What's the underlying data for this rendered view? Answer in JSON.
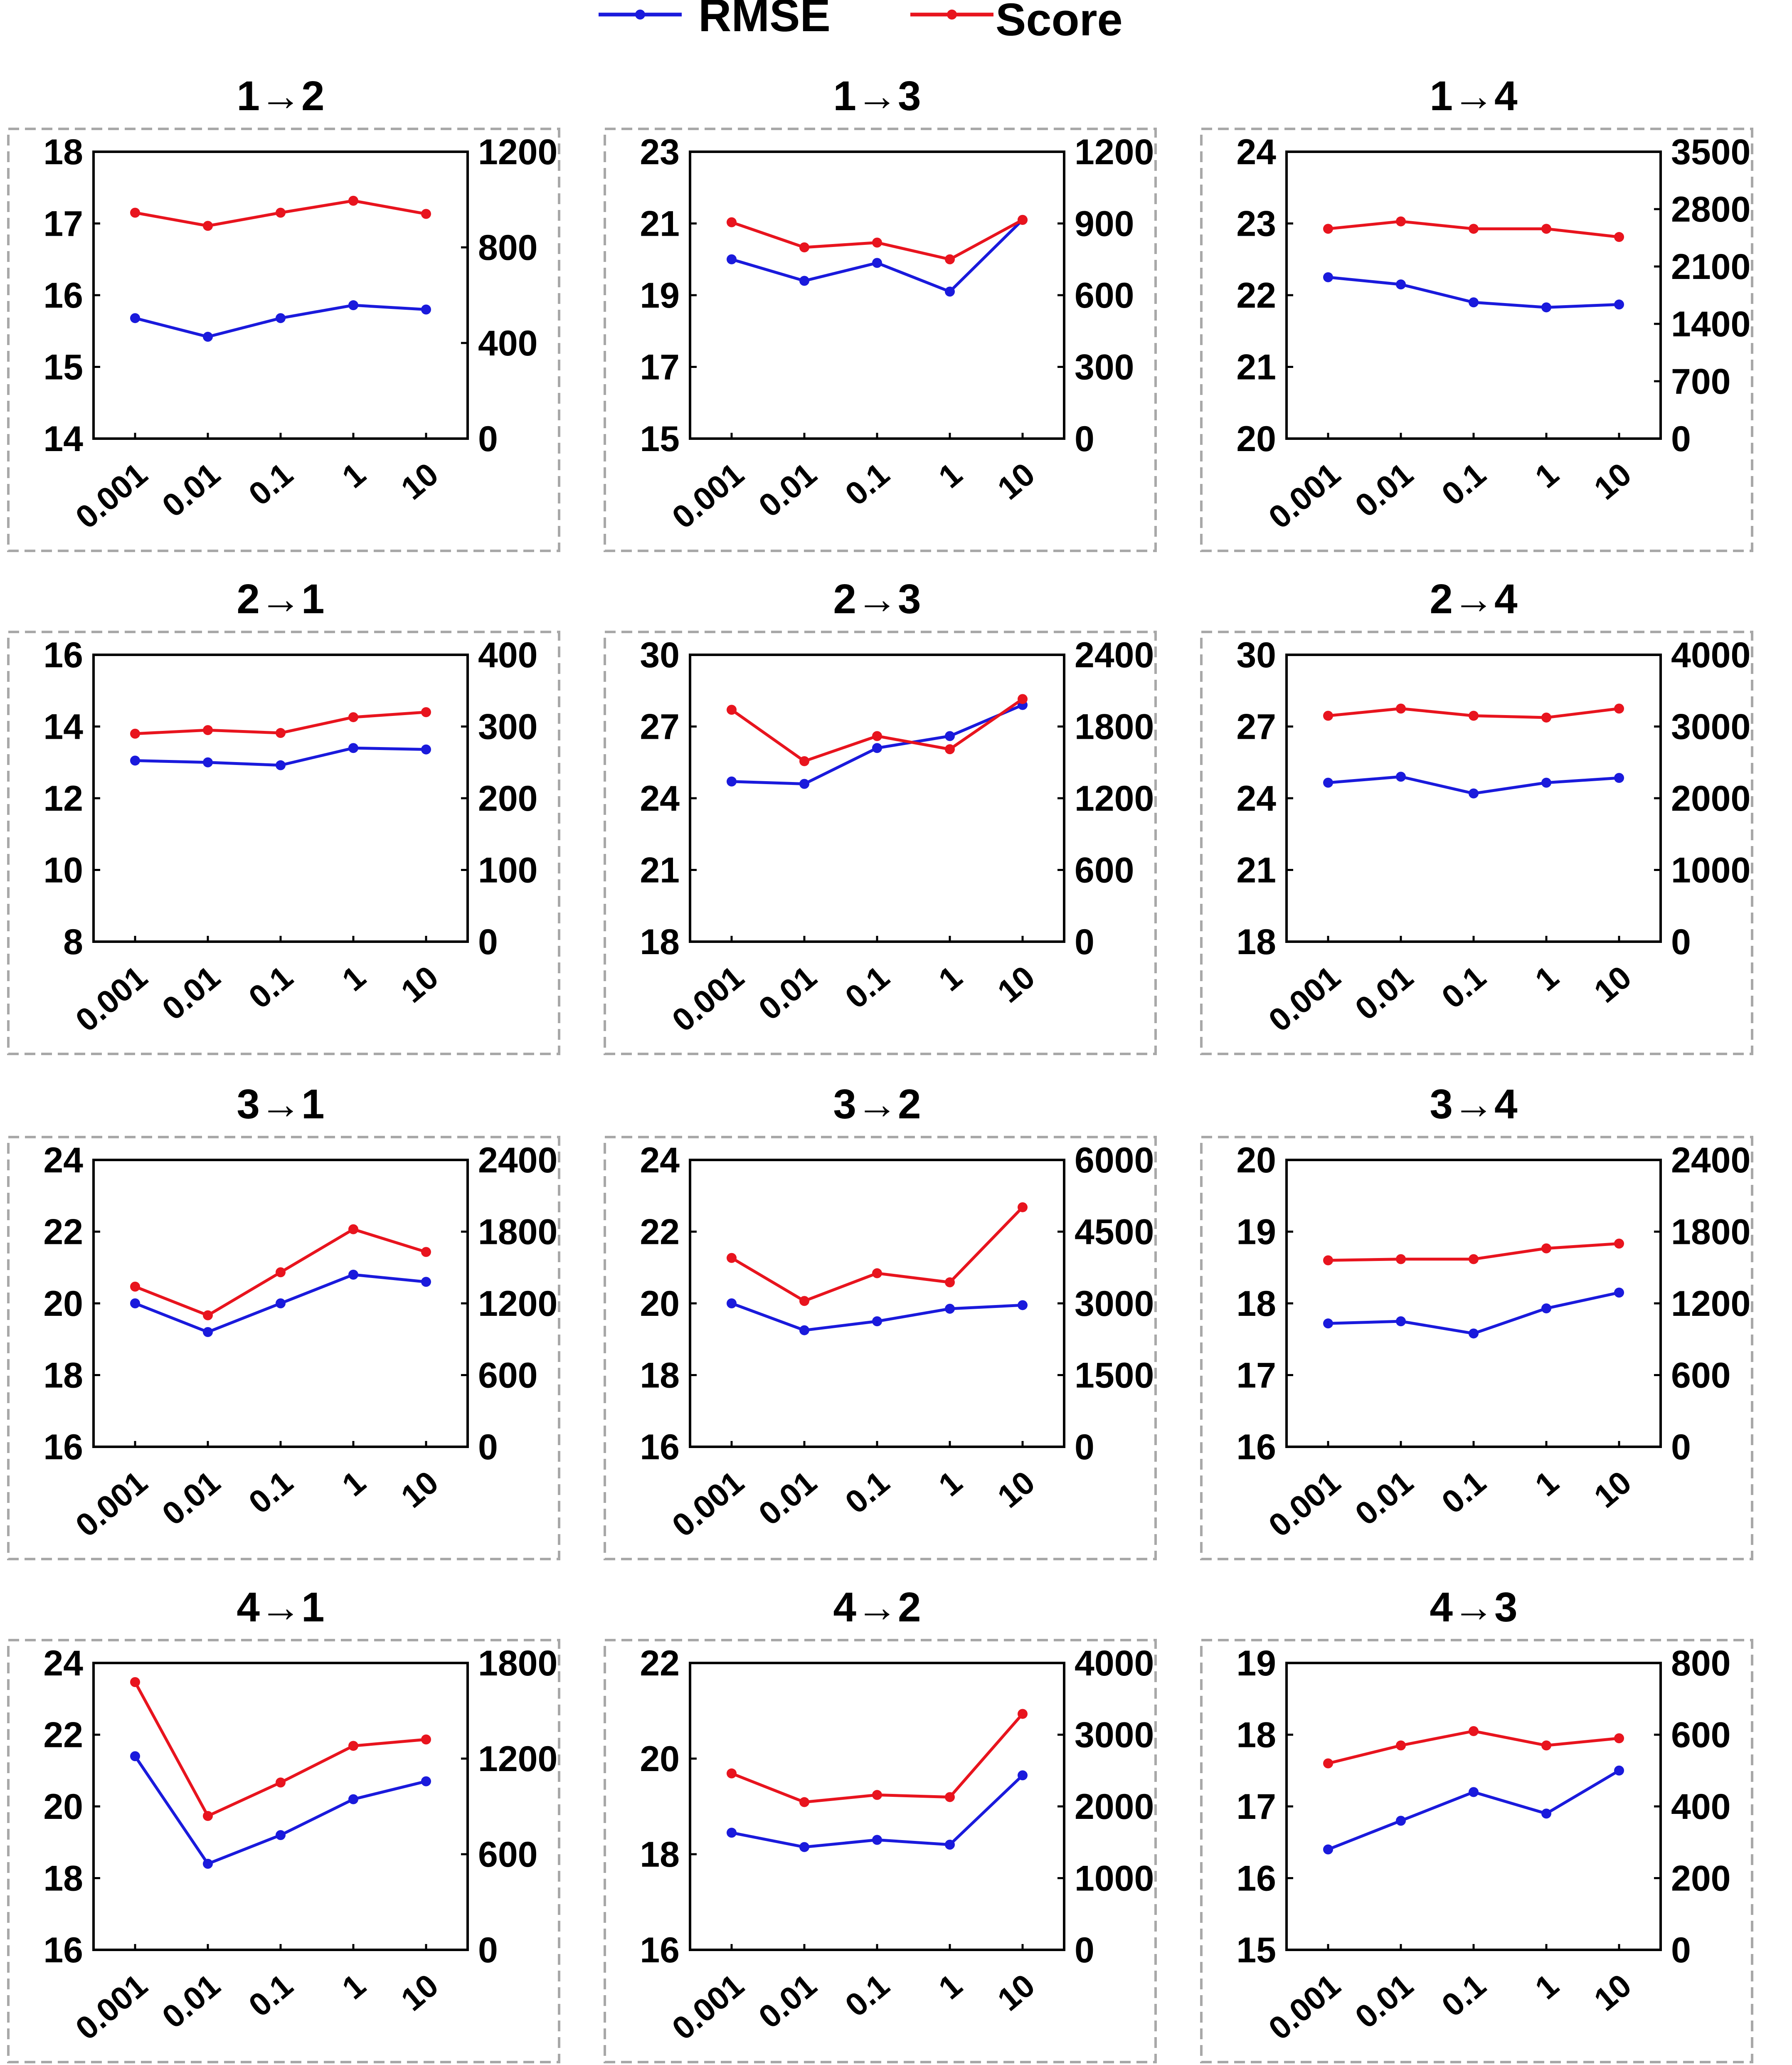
{
  "legend": {
    "placement": "top-center",
    "items": [
      {
        "label": "RMSE",
        "color": "#1a1adc"
      },
      {
        "label": "Score",
        "color": "#e8141e"
      }
    ]
  },
  "colors": {
    "rmse": "#1a1adc",
    "score": "#e8141e",
    "panel_border": "#a8a8a8",
    "axis": "#000000"
  },
  "chart_data": [
    {
      "type": "line",
      "title": "1→2",
      "categories": [
        "0.001",
        "0.01",
        "0.1",
        "1",
        "10"
      ],
      "y_left": {
        "ticks": [
          14,
          15,
          16,
          17,
          18
        ],
        "lim": [
          14,
          18
        ]
      },
      "y_right": {
        "ticks": [
          0,
          400,
          800,
          1200
        ],
        "lim": [
          0,
          1200
        ]
      },
      "series": [
        {
          "name": "RMSE",
          "axis": "left",
          "values": [
            15.68,
            15.42,
            15.68,
            15.86,
            15.8
          ]
        },
        {
          "name": "Score",
          "axis": "right",
          "values": [
            945,
            890,
            945,
            995,
            940
          ]
        }
      ]
    },
    {
      "type": "line",
      "title": "1→3",
      "categories": [
        "0.001",
        "0.01",
        "0.1",
        "1",
        "10"
      ],
      "y_left": {
        "ticks": [
          15,
          17,
          19,
          21,
          23
        ],
        "lim": [
          15,
          23
        ]
      },
      "y_right": {
        "ticks": [
          0,
          300,
          600,
          900,
          1200
        ],
        "lim": [
          0,
          1200
        ]
      },
      "series": [
        {
          "name": "RMSE",
          "axis": "left",
          "values": [
            20.0,
            19.4,
            19.9,
            19.1,
            21.1
          ]
        },
        {
          "name": "Score",
          "axis": "right",
          "values": [
            905,
            800,
            820,
            750,
            915
          ]
        }
      ]
    },
    {
      "type": "line",
      "title": "1→4",
      "categories": [
        "0.001",
        "0.01",
        "0.1",
        "1",
        "10"
      ],
      "y_left": {
        "ticks": [
          20,
          21,
          22,
          23,
          24
        ],
        "lim": [
          20,
          24
        ]
      },
      "y_right": {
        "ticks": [
          0,
          700,
          1400,
          2100,
          2800,
          3500
        ],
        "lim": [
          0,
          3500
        ]
      },
      "series": [
        {
          "name": "RMSE",
          "axis": "left",
          "values": [
            22.25,
            22.15,
            21.9,
            21.83,
            21.87
          ]
        },
        {
          "name": "Score",
          "axis": "right",
          "values": [
            2560,
            2650,
            2560,
            2560,
            2460
          ]
        }
      ]
    },
    {
      "type": "line",
      "title": "2→1",
      "categories": [
        "0.001",
        "0.01",
        "0.1",
        "1",
        "10"
      ],
      "y_left": {
        "ticks": [
          8,
          10,
          12,
          14,
          16
        ],
        "lim": [
          8,
          16
        ]
      },
      "y_right": {
        "ticks": [
          0,
          100,
          200,
          300,
          400
        ],
        "lim": [
          0,
          400
        ]
      },
      "series": [
        {
          "name": "RMSE",
          "axis": "left",
          "values": [
            13.05,
            13.0,
            12.92,
            13.4,
            13.36
          ]
        },
        {
          "name": "Score",
          "axis": "right",
          "values": [
            290,
            295,
            291,
            313,
            320
          ]
        }
      ]
    },
    {
      "type": "line",
      "title": "2→3",
      "categories": [
        "0.001",
        "0.01",
        "0.1",
        "1",
        "10"
      ],
      "y_left": {
        "ticks": [
          18,
          21,
          24,
          27,
          30
        ],
        "lim": [
          18,
          30
        ]
      },
      "y_right": {
        "ticks": [
          0,
          600,
          1200,
          1800,
          2400
        ],
        "lim": [
          0,
          2400
        ]
      },
      "series": [
        {
          "name": "RMSE",
          "axis": "left",
          "values": [
            24.7,
            24.6,
            26.1,
            26.6,
            27.9
          ]
        },
        {
          "name": "Score",
          "axis": "right",
          "values": [
            1940,
            1510,
            1720,
            1610,
            2030
          ]
        }
      ]
    },
    {
      "type": "line",
      "title": "2→4",
      "categories": [
        "0.001",
        "0.01",
        "0.1",
        "1",
        "10"
      ],
      "y_left": {
        "ticks": [
          18,
          21,
          24,
          27,
          30
        ],
        "lim": [
          18,
          30
        ]
      },
      "y_right": {
        "ticks": [
          0,
          1000,
          2000,
          3000,
          4000
        ],
        "lim": [
          0,
          4000
        ]
      },
      "series": [
        {
          "name": "RMSE",
          "axis": "left",
          "values": [
            24.65,
            24.9,
            24.2,
            24.65,
            24.85
          ]
        },
        {
          "name": "Score",
          "axis": "right",
          "values": [
            3150,
            3250,
            3150,
            3125,
            3250
          ]
        }
      ]
    },
    {
      "type": "line",
      "title": "3→1",
      "categories": [
        "0.001",
        "0.01",
        "0.1",
        "1",
        "10"
      ],
      "y_left": {
        "ticks": [
          16,
          18,
          20,
          22,
          24
        ],
        "lim": [
          16,
          24
        ]
      },
      "y_right": {
        "ticks": [
          0,
          600,
          1200,
          1800,
          2400
        ],
        "lim": [
          0,
          2400
        ]
      },
      "series": [
        {
          "name": "RMSE",
          "axis": "left",
          "values": [
            20.0,
            19.2,
            20.0,
            20.8,
            20.6
          ]
        },
        {
          "name": "Score",
          "axis": "right",
          "values": [
            1340,
            1100,
            1460,
            1820,
            1630
          ]
        }
      ]
    },
    {
      "type": "line",
      "title": "3→2",
      "categories": [
        "0.001",
        "0.01",
        "0.1",
        "1",
        "10"
      ],
      "y_left": {
        "ticks": [
          16,
          18,
          20,
          22,
          24
        ],
        "lim": [
          16,
          24
        ]
      },
      "y_right": {
        "ticks": [
          0,
          1500,
          3000,
          4500,
          6000
        ],
        "lim": [
          0,
          6000
        ]
      },
      "series": [
        {
          "name": "RMSE",
          "axis": "left",
          "values": [
            20.0,
            19.25,
            19.5,
            19.85,
            19.95
          ]
        },
        {
          "name": "Score",
          "axis": "right",
          "values": [
            3950,
            3050,
            3630,
            3440,
            5010
          ]
        }
      ]
    },
    {
      "type": "line",
      "title": "3→4",
      "categories": [
        "0.001",
        "0.01",
        "0.1",
        "1",
        "10"
      ],
      "y_left": {
        "ticks": [
          16,
          17,
          18,
          19,
          20
        ],
        "lim": [
          16,
          20
        ]
      },
      "y_right": {
        "ticks": [
          0,
          600,
          1200,
          1800,
          2400
        ],
        "lim": [
          0,
          2400
        ]
      },
      "series": [
        {
          "name": "RMSE",
          "axis": "left",
          "values": [
            17.72,
            17.75,
            17.58,
            17.93,
            18.15
          ]
        },
        {
          "name": "Score",
          "axis": "right",
          "values": [
            1560,
            1570,
            1570,
            1660,
            1700
          ]
        }
      ]
    },
    {
      "type": "line",
      "title": "4→1",
      "categories": [
        "0.001",
        "0.01",
        "0.1",
        "1",
        "10"
      ],
      "y_left": {
        "ticks": [
          16,
          18,
          20,
          22,
          24
        ],
        "lim": [
          16,
          24
        ]
      },
      "y_right": {
        "ticks": [
          0,
          600,
          1200,
          1800
        ],
        "lim": [
          0,
          1800
        ]
      },
      "series": [
        {
          "name": "RMSE",
          "axis": "left",
          "values": [
            21.4,
            18.4,
            19.2,
            20.2,
            20.7
          ]
        },
        {
          "name": "Score",
          "axis": "right",
          "values": [
            1680,
            840,
            1050,
            1280,
            1320
          ]
        }
      ]
    },
    {
      "type": "line",
      "title": "4→2",
      "categories": [
        "0.001",
        "0.01",
        "0.1",
        "1",
        "10"
      ],
      "y_left": {
        "ticks": [
          16,
          18,
          20,
          22
        ],
        "lim": [
          16,
          22
        ]
      },
      "y_right": {
        "ticks": [
          0,
          1000,
          2000,
          3000,
          4000
        ],
        "lim": [
          0,
          4000
        ]
      },
      "series": [
        {
          "name": "RMSE",
          "axis": "left",
          "values": [
            18.45,
            18.15,
            18.3,
            18.2,
            19.65
          ]
        },
        {
          "name": "Score",
          "axis": "right",
          "values": [
            2460,
            2060,
            2160,
            2130,
            3290
          ]
        }
      ]
    },
    {
      "type": "line",
      "title": "4→3",
      "categories": [
        "0.001",
        "0.01",
        "0.1",
        "1",
        "10"
      ],
      "y_left": {
        "ticks": [
          15,
          16,
          17,
          18,
          19
        ],
        "lim": [
          15,
          19
        ]
      },
      "y_right": {
        "ticks": [
          0,
          200,
          400,
          600,
          800
        ],
        "lim": [
          0,
          800
        ]
      },
      "series": [
        {
          "name": "RMSE",
          "axis": "left",
          "values": [
            16.4,
            16.8,
            17.2,
            16.9,
            17.5
          ]
        },
        {
          "name": "Score",
          "axis": "right",
          "values": [
            520,
            570,
            610,
            570,
            590
          ]
        }
      ]
    }
  ]
}
